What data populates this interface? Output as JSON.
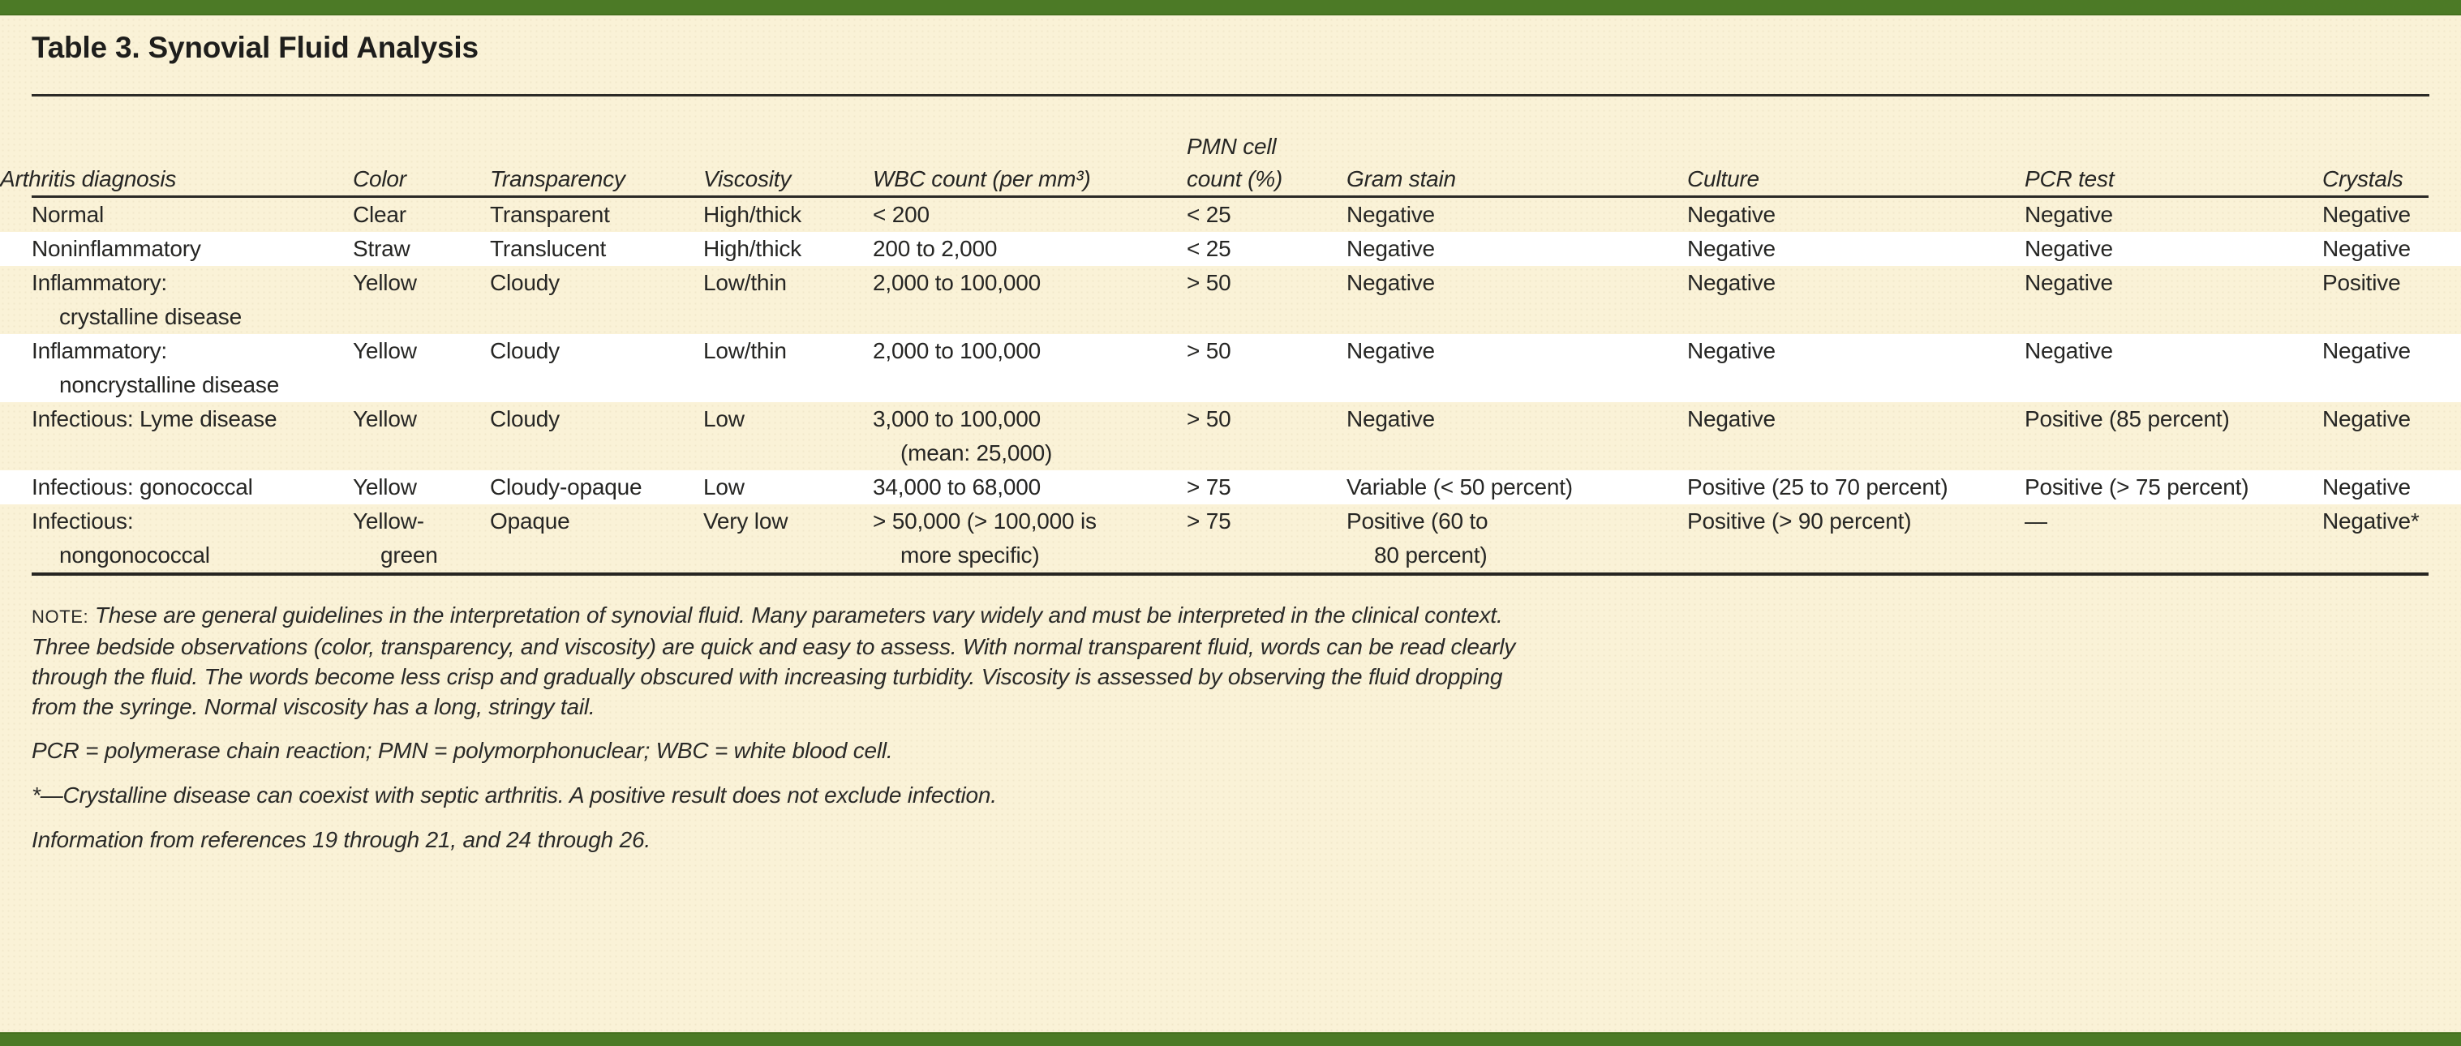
{
  "page": {
    "title": "Table 3. Synovial Fluid Analysis",
    "accent_green": "#4c7a26",
    "background_cream": "#faf2d7",
    "stripe_white": "#ffffff"
  },
  "table": {
    "columns": [
      {
        "key": "diagnosis",
        "label": "Arthritis diagnosis"
      },
      {
        "key": "color",
        "label": "Color"
      },
      {
        "key": "transparency",
        "label": "Transparency"
      },
      {
        "key": "viscosity",
        "label": "Viscosity"
      },
      {
        "key": "wbc",
        "label": "WBC count (per mm³)"
      },
      {
        "key": "pmn",
        "label": "PMN cell\ncount (%)"
      },
      {
        "key": "gram",
        "label": "Gram stain"
      },
      {
        "key": "culture",
        "label": "Culture"
      },
      {
        "key": "pcr",
        "label": "PCR test"
      },
      {
        "key": "crystals",
        "label": "Crystals"
      }
    ],
    "rows": [
      {
        "diagnosis": "Normal",
        "color": "Clear",
        "transparency": "Transparent",
        "viscosity": "High/thick",
        "wbc": "< 200",
        "pmn": "< 25",
        "gram": "Negative",
        "culture": "Negative",
        "pcr": "Negative",
        "crystals": "Negative"
      },
      {
        "diagnosis": "Noninflammatory",
        "color": "Straw",
        "transparency": "Translucent",
        "viscosity": "High/thick",
        "wbc": "200 to 2,000",
        "pmn": "< 25",
        "gram": "Negative",
        "culture": "Negative",
        "pcr": "Negative",
        "crystals": "Negative"
      },
      {
        "diagnosis": "Inflammatory:\ncrystalline disease",
        "color": "Yellow",
        "transparency": "Cloudy",
        "viscosity": "Low/thin",
        "wbc": "2,000 to 100,000",
        "pmn": "> 50",
        "gram": "Negative",
        "culture": "Negative",
        "pcr": "Negative",
        "crystals": "Positive"
      },
      {
        "diagnosis": "Inflammatory:\nnoncrystalline disease",
        "color": "Yellow",
        "transparency": "Cloudy",
        "viscosity": "Low/thin",
        "wbc": "2,000 to 100,000",
        "pmn": "> 50",
        "gram": "Negative",
        "culture": "Negative",
        "pcr": "Negative",
        "crystals": "Negative"
      },
      {
        "diagnosis": "Infectious: Lyme disease",
        "color": "Yellow",
        "transparency": "Cloudy",
        "viscosity": "Low",
        "wbc": "3,000 to 100,000\n(mean: 25,000)",
        "pmn": "> 50",
        "gram": "Negative",
        "culture": "Negative",
        "pcr": "Positive (85 percent)",
        "crystals": "Negative"
      },
      {
        "diagnosis": "Infectious: gonococcal",
        "color": "Yellow",
        "transparency": "Cloudy-opaque",
        "viscosity": "Low",
        "wbc": "34,000 to 68,000",
        "pmn": "> 75",
        "gram": "Variable (< 50 percent)",
        "culture": "Positive (25 to 70 percent)",
        "pcr": "Positive (> 75 percent)",
        "crystals": "Negative"
      },
      {
        "diagnosis": "Infectious:\nnongonococcal",
        "color": "Yellow-\ngreen",
        "transparency": "Opaque",
        "viscosity": "Very low",
        "wbc": "> 50,000 (> 100,000 is\nmore specific)",
        "pmn": "> 75",
        "gram": "Positive (60 to\n80 percent)",
        "culture": "Positive (> 90 percent)",
        "pcr": "—",
        "crystals": "Negative*"
      }
    ]
  },
  "footnotes": {
    "note_label": "NOTE:",
    "note_text": " These are general guidelines in the interpretation of synovial fluid. Many parameters vary widely and must be interpreted in the clinical context.\nThree bedside observations (color, transparency, and viscosity) are quick and easy to assess. With normal transparent fluid, words can be read clearly\nthrough the fluid. The words become less crisp and gradually obscured with increasing turbidity. Viscosity is assessed by observing the fluid dropping\nfrom the syringe. Normal viscosity has a long, stringy tail.",
    "abbreviations": "PCR = polymerase chain reaction; PMN = polymorphonuclear; WBC = white blood cell.",
    "asterisk_note": "*—Crystalline disease can coexist with septic arthritis. A positive result does not exclude infection.",
    "source": "Information from references 19 through 21, and 24 through 26."
  }
}
